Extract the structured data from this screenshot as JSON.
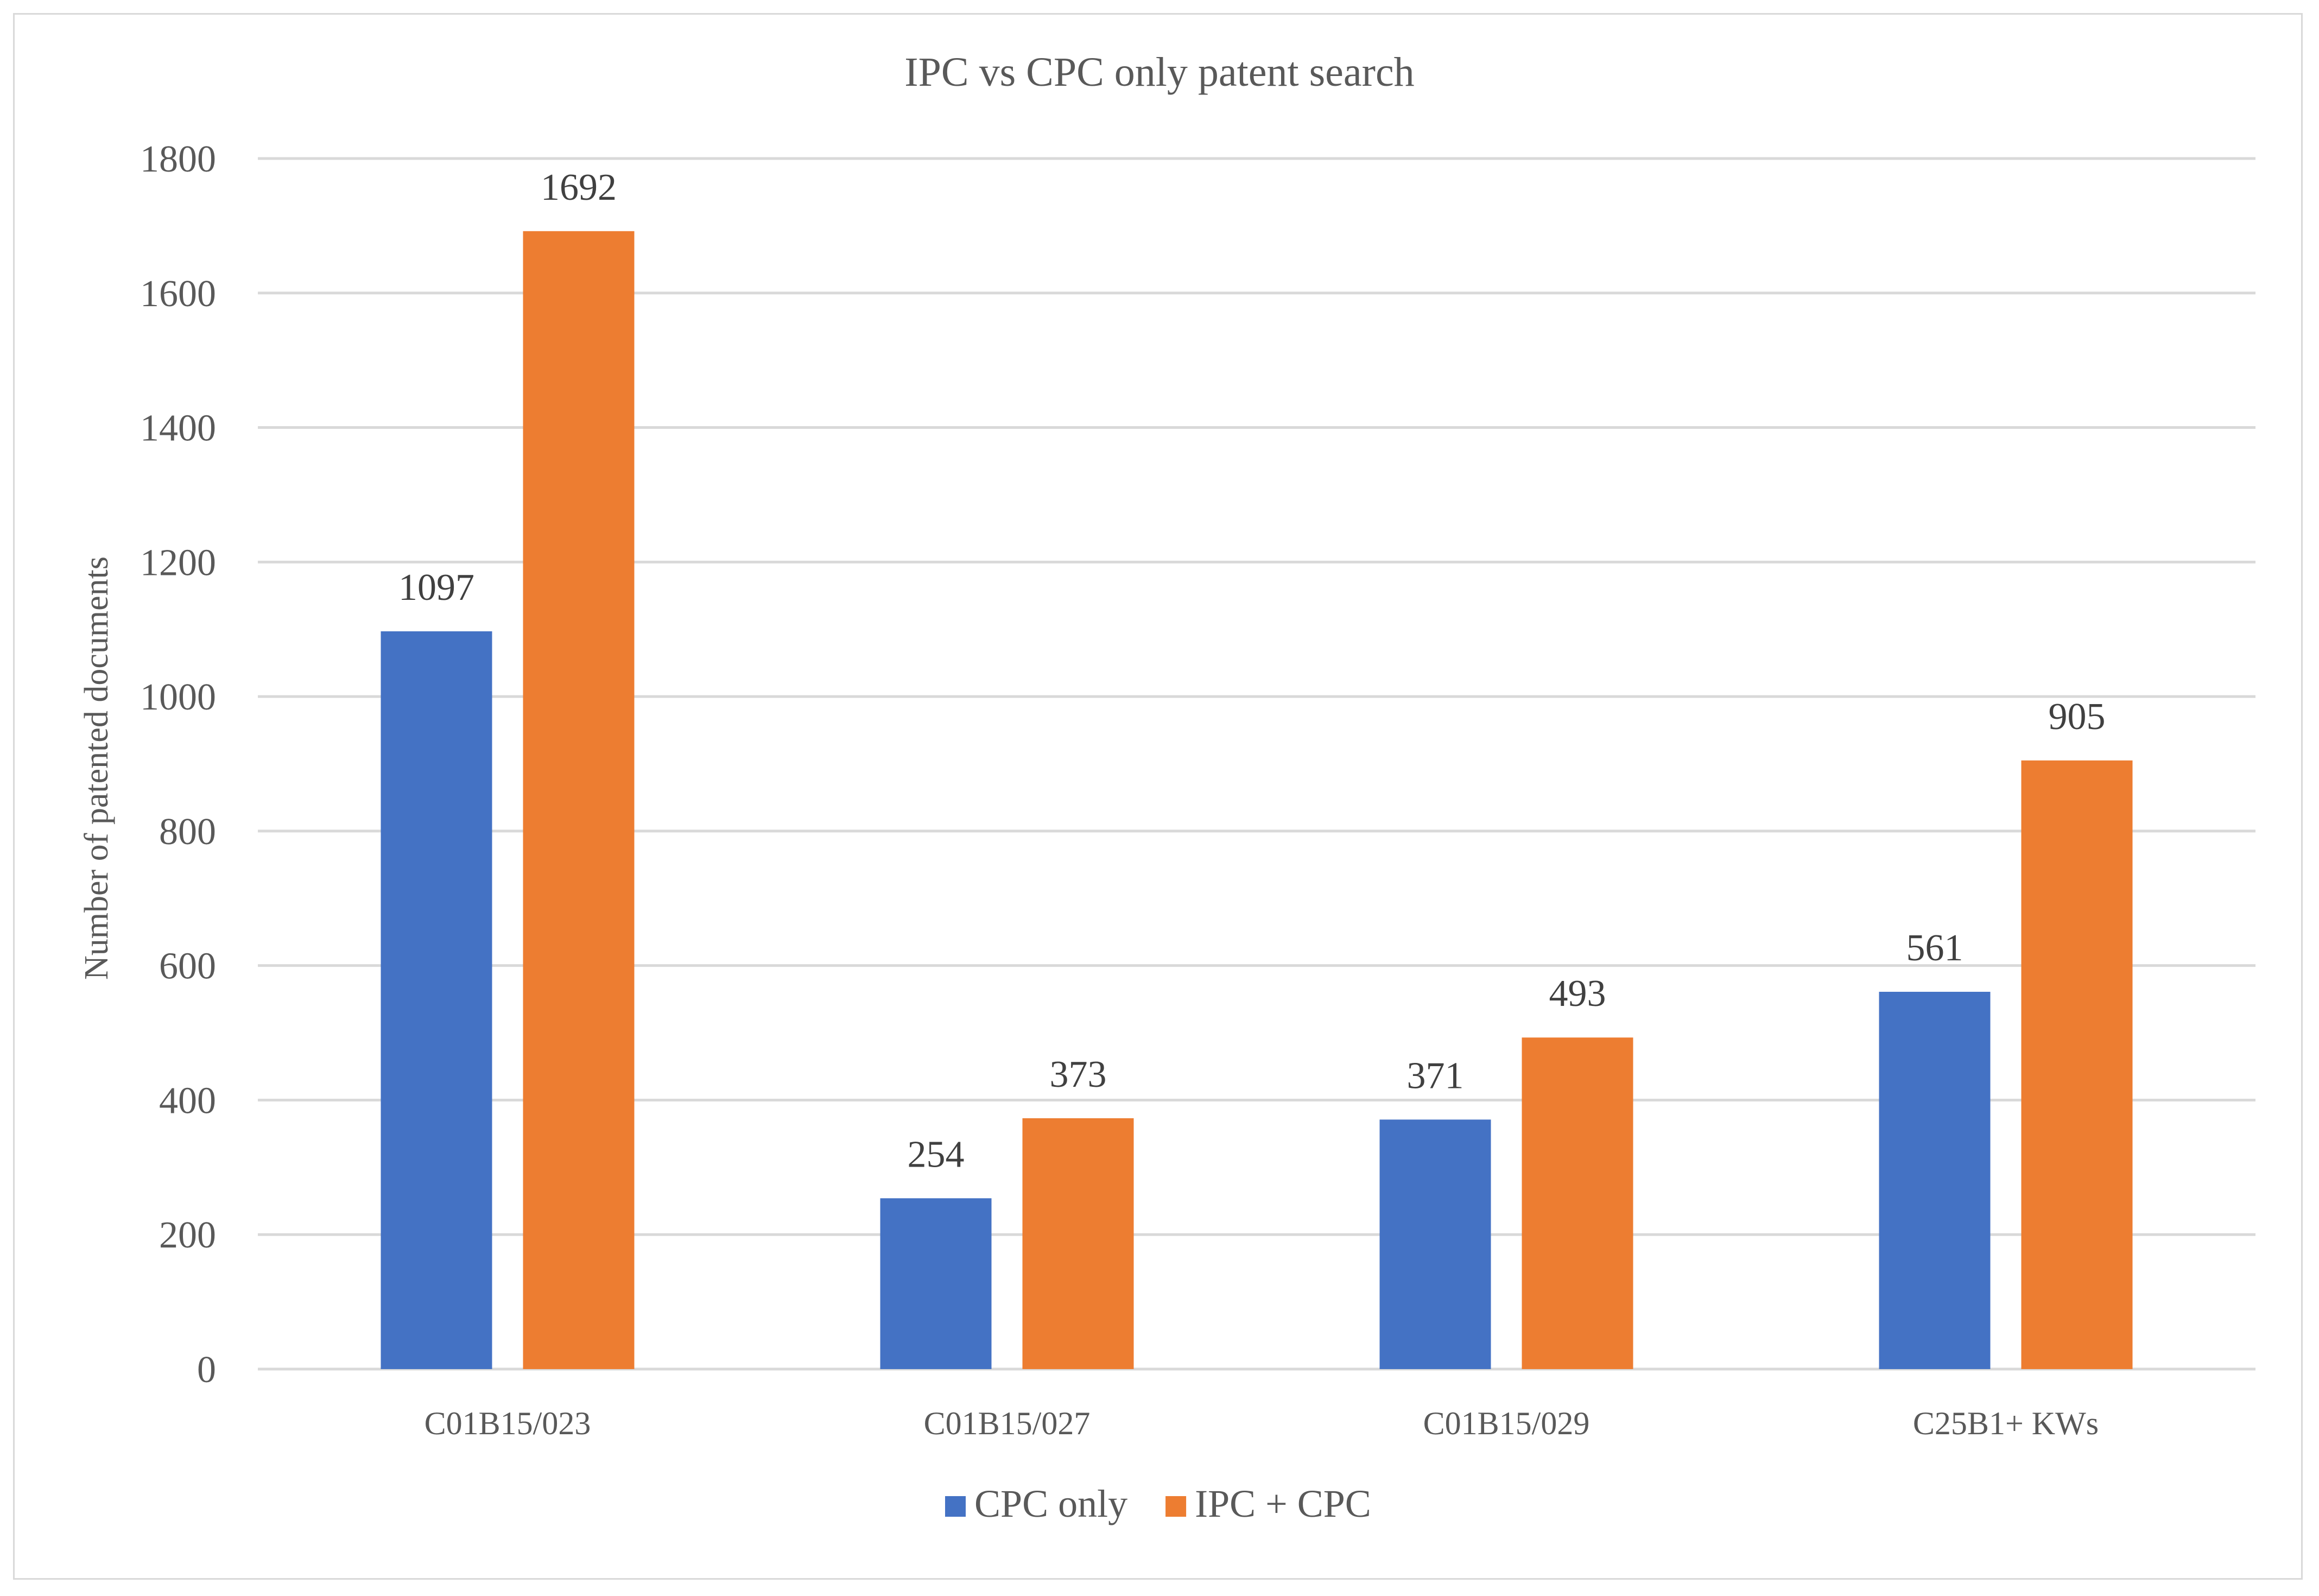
{
  "chart_data": {
    "type": "bar",
    "title": "IPC vs CPC only patent  search",
    "xlabel": "",
    "ylabel": "Number  of patented documents",
    "ylim": [
      0,
      1800
    ],
    "yticks": [
      0,
      200,
      400,
      600,
      800,
      1000,
      1200,
      1400,
      1600,
      1800
    ],
    "grid": true,
    "legend_position": "bottom",
    "categories": [
      "C01B15/023",
      "C01B15/027",
      "C01B15/029",
      "C25B1+ KWs"
    ],
    "series": [
      {
        "name": "CPC only",
        "color": "#4472c4",
        "values": [
          1097,
          254,
          371,
          561
        ]
      },
      {
        "name": "IPC + CPC",
        "color": "#ed7d31",
        "values": [
          1692,
          373,
          493,
          905
        ]
      }
    ]
  }
}
